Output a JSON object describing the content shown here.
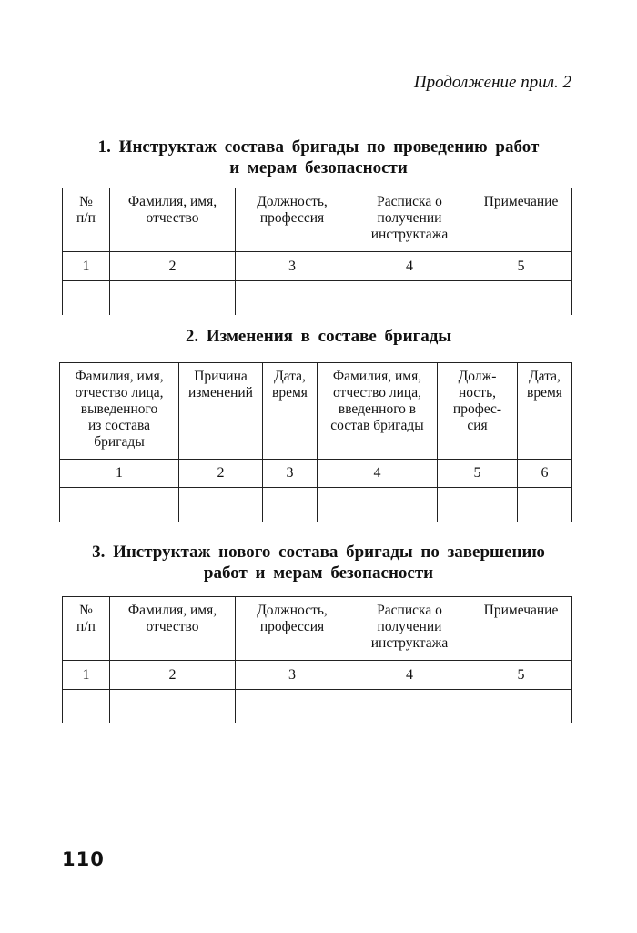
{
  "header": {
    "continuation": "Продолжение прил. 2"
  },
  "sections": [
    {
      "title_line1": "1. Инструктаж состава бригады по проведению работ",
      "title_line2": "и мерам безопасности",
      "columns": [
        "№\nп/п",
        "Фамилия, имя,\nотчество",
        "Должность,\nпрофессия",
        "Расписка о\nполучении\nинструктажа",
        "Примечание"
      ],
      "numbers": [
        "1",
        "2",
        "3",
        "4",
        "5"
      ]
    },
    {
      "title_line1": "2. Изменения в составе бригады",
      "columns": [
        "Фамилия, имя,\nотчество лица,\nвыведенного\nиз состава\nбригады",
        "Причина\nизменений",
        "Дата,\nвремя",
        "Фамилия, имя,\nотчество лица,\nвведенного в\nсостав бригады",
        "Долж-\nность,\nпрофес-\nсия",
        "Дата,\nвремя"
      ],
      "numbers": [
        "1",
        "2",
        "3",
        "4",
        "5",
        "6"
      ]
    },
    {
      "title_line1": "3. Инструктаж нового состава бригады по завершению",
      "title_line2": "работ и мерам безопасности",
      "columns": [
        "№\nп/п",
        "Фамилия, имя,\nотчество",
        "Должность,\nпрофессия",
        "Расписка о\nполучении\nинструктажа",
        "Примечание"
      ],
      "numbers": [
        "1",
        "2",
        "3",
        "4",
        "5"
      ]
    }
  ],
  "footer": {
    "page_number": "110"
  }
}
